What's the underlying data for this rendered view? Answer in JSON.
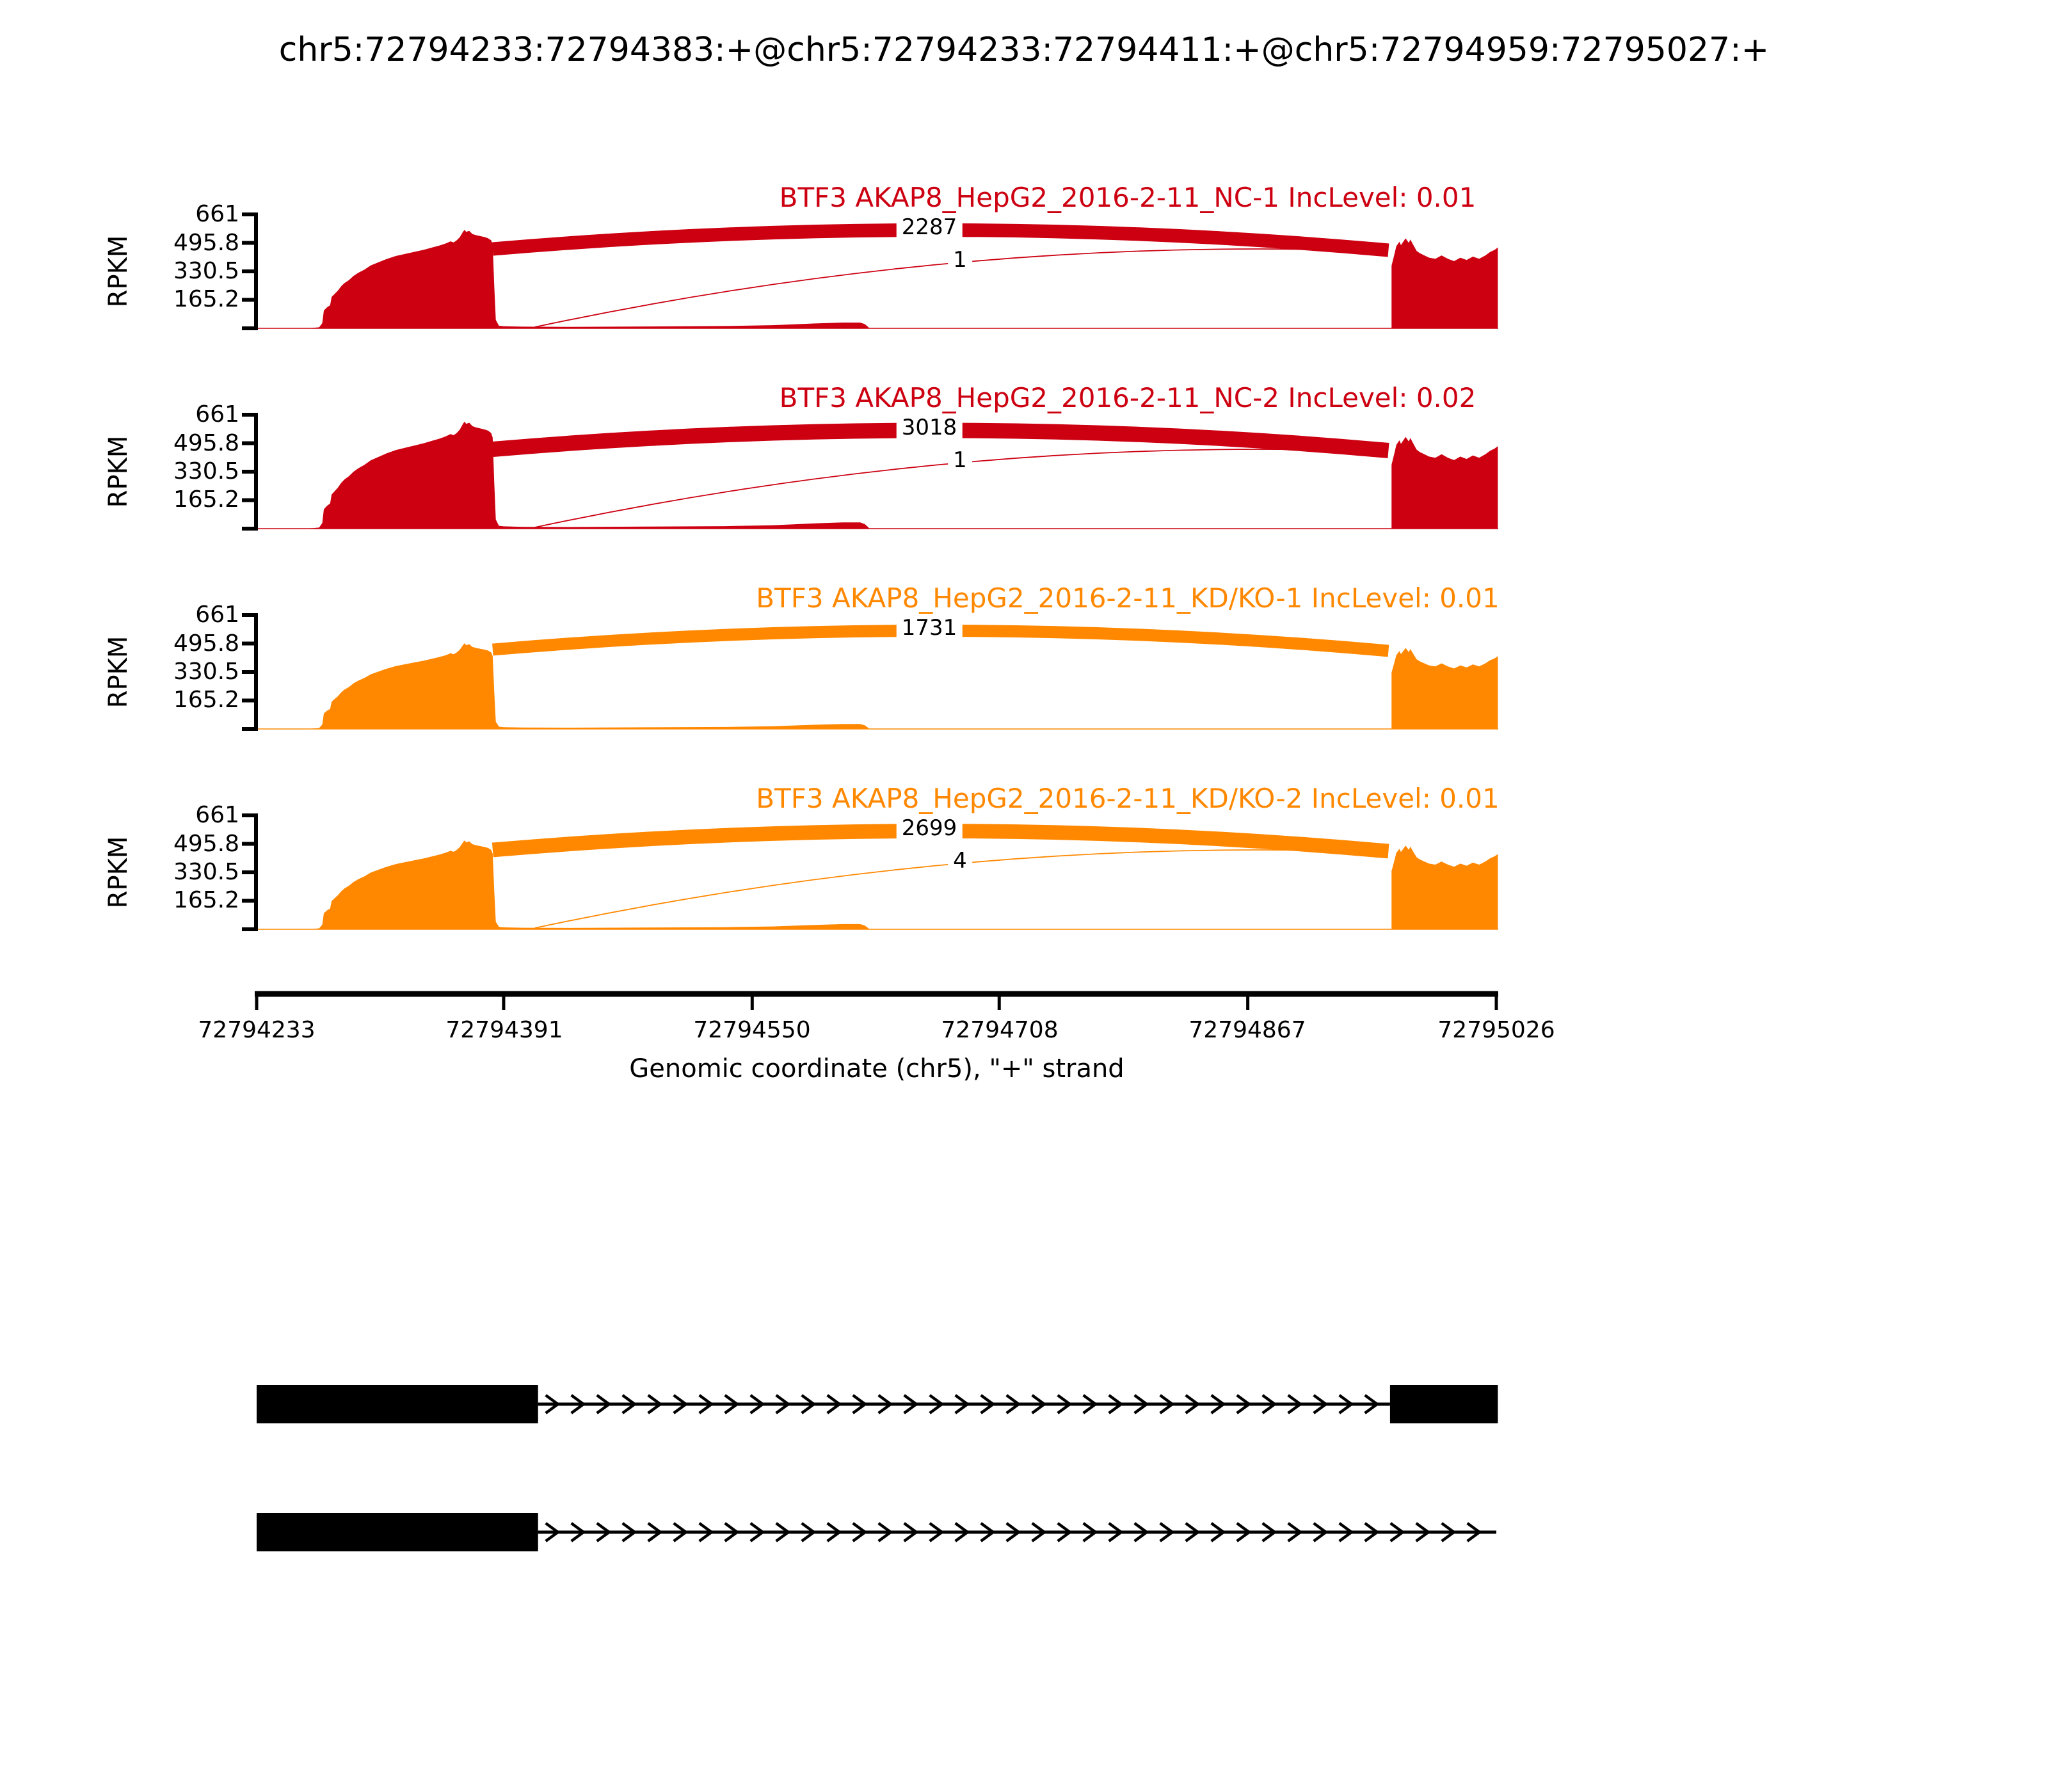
{
  "figure": {
    "title": "chr5:72794233:72794383:+@chr5:72794233:72794411:+@chr5:72794959:72795027:+"
  },
  "axis": {
    "ylabel": "RPKM",
    "xlabel": "Genomic coordinate (chr5), \"+\" strand",
    "y_tick_labels": [
      "661",
      "495.8",
      "330.5",
      "165.2"
    ],
    "x_tick_labels": [
      "72794233",
      "72794391",
      "72794550",
      "72794708",
      "72794867",
      "72795026"
    ]
  },
  "chart_data": {
    "type": "area",
    "title": "chr5:72794233:72794383:+@chr5:72794233:72794411:+@chr5:72794959:72795027:+",
    "xlabel": "Genomic coordinate (chr5), \"+\" strand",
    "ylabel": "RPKM",
    "chromosome": "chr5",
    "strand": "+",
    "x_range": [
      72794233,
      72795026
    ],
    "x_ticks": [
      72794233,
      72794391,
      72794550,
      72794708,
      72794867,
      72795026
    ],
    "y_ticks": [
      0,
      165.2,
      330.5,
      495.8,
      661
    ],
    "y_max": 661,
    "grid": false,
    "tracks": [
      {
        "sample": "BTF3 AKAP8_HepG2_2016-2-11_NC-1",
        "label": "BTF3 AKAP8_HepG2_2016-2-11_NC-1 IncLevel: 0.01",
        "inc_level": "0.01",
        "color": "#CC0011",
        "peak_scale": 0.92,
        "right_scale": 1.0,
        "junctions": [
          {
            "label": "2287",
            "count": 2287,
            "style": "thick",
            "from": 72794383,
            "to": 72794959
          },
          {
            "label": "1",
            "count": 1,
            "style": "thin",
            "from": 72794411,
            "to": 72794959
          }
        ]
      },
      {
        "sample": "BTF3 AKAP8_HepG2_2016-2-11_NC-2",
        "label": "BTF3 AKAP8_HepG2_2016-2-11_NC-2 IncLevel: 0.02",
        "inc_level": "0.02",
        "color": "#CC0011",
        "peak_scale": 1.0,
        "right_scale": 1.02,
        "junctions": [
          {
            "label": "3018",
            "count": 3018,
            "style": "thick",
            "from": 72794383,
            "to": 72794959
          },
          {
            "label": "1",
            "count": 1,
            "style": "thin",
            "from": 72794411,
            "to": 72794959
          }
        ]
      },
      {
        "sample": "BTF3 AKAP8_HepG2_2016-2-11_KD/KO-1",
        "label": "BTF3 AKAP8_HepG2_2016-2-11_KD/KO-1 IncLevel: 0.01",
        "inc_level": "0.01",
        "color": "#FF8800",
        "peak_scale": 0.8,
        "right_scale": 0.9,
        "junctions": [
          {
            "label": "1731",
            "count": 1731,
            "style": "thick",
            "from": 72794383,
            "to": 72794959
          }
        ]
      },
      {
        "sample": "BTF3 AKAP8_HepG2_2016-2-11_KD/KO-2",
        "label": "BTF3 AKAP8_HepG2_2016-2-11_KD/KO-2 IncLevel: 0.01",
        "inc_level": "0.01",
        "color": "#FF8800",
        "peak_scale": 0.83,
        "right_scale": 0.93,
        "junctions": [
          {
            "label": "2699",
            "count": 2699,
            "style": "thick",
            "from": 72794383,
            "to": 72794959
          },
          {
            "label": "4",
            "count": 4,
            "style": "thin",
            "from": 72794411,
            "to": 72794959
          }
        ]
      }
    ],
    "coverage_profile": {
      "left": [
        [
          30,
          0
        ],
        [
          36,
          0.004
        ],
        [
          40,
          0.01
        ],
        [
          42,
          0.05
        ],
        [
          43,
          0.17
        ],
        [
          45,
          0.2
        ],
        [
          47,
          0.22
        ],
        [
          48,
          0.3
        ],
        [
          50,
          0.33
        ],
        [
          52,
          0.36
        ],
        [
          54,
          0.4
        ],
        [
          56,
          0.43
        ],
        [
          59,
          0.46
        ],
        [
          62,
          0.5
        ],
        [
          65,
          0.53
        ],
        [
          69,
          0.56
        ],
        [
          73,
          0.6
        ],
        [
          78,
          0.63
        ],
        [
          83,
          0.66
        ],
        [
          89,
          0.69
        ],
        [
          95,
          0.71
        ],
        [
          101,
          0.73
        ],
        [
          107,
          0.75
        ],
        [
          112,
          0.77
        ],
        [
          117,
          0.79
        ],
        [
          121,
          0.81
        ],
        [
          124,
          0.83
        ],
        [
          126,
          0.82
        ],
        [
          128,
          0.84
        ],
        [
          130,
          0.87
        ],
        [
          132,
          0.92
        ],
        [
          133,
          0.94
        ],
        [
          134,
          0.92
        ],
        [
          136,
          0.93
        ],
        [
          138,
          0.9
        ],
        [
          140,
          0.89
        ],
        [
          143,
          0.88
        ],
        [
          146,
          0.87
        ],
        [
          148,
          0.86
        ],
        [
          150,
          0.84
        ],
        [
          151,
          0.8
        ],
        [
          152,
          0.4
        ],
        [
          153,
          0.08
        ],
        [
          155,
          0.025
        ],
        [
          158,
          0.02
        ],
        [
          170,
          0.016
        ],
        [
          200,
          0.014
        ],
        [
          250,
          0.018
        ],
        [
          300,
          0.022
        ],
        [
          330,
          0.03
        ],
        [
          355,
          0.045
        ],
        [
          375,
          0.055
        ],
        [
          386,
          0.055
        ],
        [
          389,
          0.04
        ],
        [
          391,
          0.015
        ],
        [
          392,
          0
        ]
      ],
      "right": [
        [
          726,
          0
        ],
        [
          726,
          0.55
        ],
        [
          728,
          0.66
        ],
        [
          729,
          0.72
        ],
        [
          731,
          0.76
        ],
        [
          732,
          0.73
        ],
        [
          734,
          0.77
        ],
        [
          735,
          0.79
        ],
        [
          737,
          0.75
        ],
        [
          738,
          0.78
        ],
        [
          740,
          0.73
        ],
        [
          742,
          0.68
        ],
        [
          744,
          0.66
        ],
        [
          747,
          0.64
        ],
        [
          750,
          0.62
        ],
        [
          754,
          0.61
        ],
        [
          758,
          0.64
        ],
        [
          762,
          0.61
        ],
        [
          766,
          0.59
        ],
        [
          770,
          0.62
        ],
        [
          774,
          0.6
        ],
        [
          778,
          0.63
        ],
        [
          782,
          0.61
        ],
        [
          786,
          0.64
        ],
        [
          789,
          0.67
        ],
        [
          792,
          0.69
        ],
        [
          794,
          0.71
        ],
        [
          794,
          0
        ]
      ]
    },
    "isoforms": [
      {
        "exons": [
          [
            72794233,
            72794413
          ],
          [
            72794958,
            72795027
          ]
        ],
        "strand": "+"
      },
      {
        "exons": [
          [
            72794233,
            72794413
          ]
        ],
        "line_end": 72795026,
        "strand": "+"
      }
    ]
  }
}
